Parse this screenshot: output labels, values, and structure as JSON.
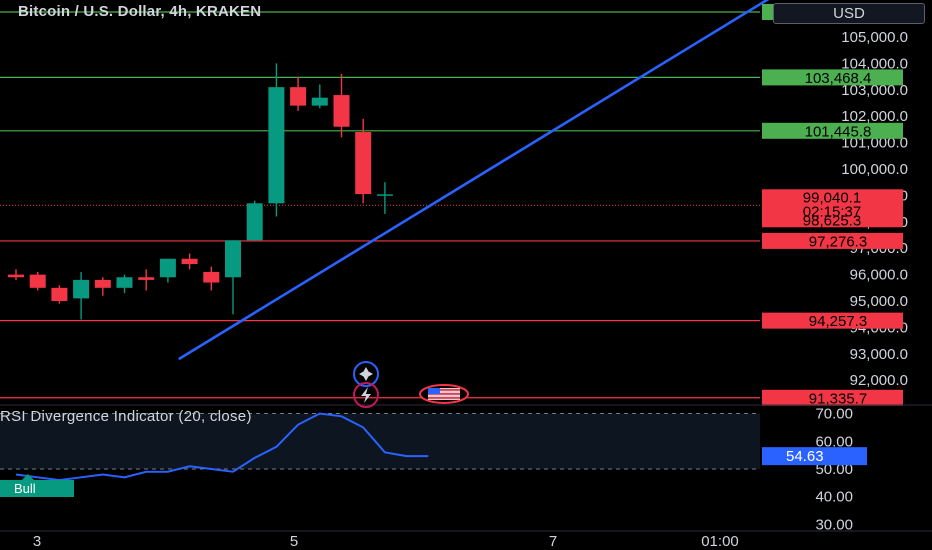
{
  "header": {
    "symbol_title": "Bitcoin / U.S. Dollar, 4h, KRAKEN",
    "currency_button": "USD"
  },
  "rsi_panel": {
    "title": "RSI Divergence Indicator (20, close)",
    "bull_label": "Bull"
  },
  "colors": {
    "background": "#000000",
    "bull_candle": "#089981",
    "bear_candle": "#f23645",
    "trendline": "#2962ff",
    "green_level": "#4caf50",
    "red_level": "#f23645",
    "rsi_line": "#2962ff"
  },
  "chart_data": [
    {
      "type": "candlestick",
      "title": "Bitcoin / U.S. Dollar, 4h, KRAKEN",
      "ylim": [
        91100,
        106400
      ],
      "y_ticks": [
        "92,000.0",
        "93,000.0",
        "94,000.0",
        "95,000.0",
        "96,000.0",
        "97,000.0",
        "98,000.0",
        "99,000.0",
        "100,000.0",
        "101,000.0",
        "102,000.0",
        "103,000.0",
        "104,000.0",
        "105,000.0"
      ],
      "x_ticks": [
        "3",
        "5",
        "7",
        "01:00"
      ],
      "candles": [
        {
          "o": 96000,
          "h": 96200,
          "l": 95800,
          "c": 95900
        },
        {
          "o": 96000,
          "h": 96100,
          "l": 95400,
          "c": 95500
        },
        {
          "o": 95500,
          "h": 95600,
          "l": 94900,
          "c": 95000
        },
        {
          "o": 95100,
          "h": 96100,
          "l": 94300,
          "c": 95800
        },
        {
          "o": 95800,
          "h": 95900,
          "l": 95200,
          "c": 95500
        },
        {
          "o": 95500,
          "h": 96000,
          "l": 95300,
          "c": 95900
        },
        {
          "o": 95900,
          "h": 96200,
          "l": 95400,
          "c": 95800
        },
        {
          "o": 95900,
          "h": 96600,
          "l": 95700,
          "c": 96600
        },
        {
          "o": 96600,
          "h": 96800,
          "l": 96200,
          "c": 96400
        },
        {
          "o": 96100,
          "h": 96300,
          "l": 95400,
          "c": 95700
        },
        {
          "o": 95900,
          "h": 97300,
          "l": 94500,
          "c": 97300
        },
        {
          "o": 97300,
          "h": 98800,
          "l": 97300,
          "c": 98700
        },
        {
          "o": 98700,
          "h": 104000,
          "l": 98200,
          "c": 103100
        },
        {
          "o": 103100,
          "h": 103500,
          "l": 102200,
          "c": 102400
        },
        {
          "o": 102400,
          "h": 103200,
          "l": 102300,
          "c": 102700
        },
        {
          "o": 102800,
          "h": 103600,
          "l": 101200,
          "c": 101600
        },
        {
          "o": 101400,
          "h": 101900,
          "l": 98700,
          "c": 99050
        },
        {
          "o": 99040,
          "h": 99500,
          "l": 98300,
          "c": 99040
        }
      ],
      "trendline": {
        "x1": 7.5,
        "y1": 92800,
        "x2": 35,
        "y2": 106600
      },
      "levels": [
        {
          "value": 105945.6,
          "label": "105,945.6",
          "kind": "green"
        },
        {
          "value": 103468.4,
          "label": "103,468.4",
          "kind": "green"
        },
        {
          "value": 101445.8,
          "label": "101,445.8",
          "kind": "green"
        },
        {
          "value": 97276.3,
          "label": "97,276.3",
          "kind": "red"
        },
        {
          "value": 94257.3,
          "label": "94,257.3",
          "kind": "red"
        },
        {
          "value": 91335.7,
          "label": "91,335.7",
          "kind": "red"
        }
      ],
      "current_price": {
        "value": 98625.3,
        "label": "98,625.3",
        "prev_label": "99,040.1",
        "countdown": "02:15:37"
      }
    },
    {
      "type": "line",
      "title": "RSI Divergence Indicator (20, close)",
      "ylim": [
        28,
        72
      ],
      "y_ticks": [
        "30.00",
        "40.00",
        "50.00",
        "60.00",
        "70.00"
      ],
      "band": [
        50,
        70
      ],
      "series": [
        {
          "values": [
            48,
            47,
            46,
            47,
            48,
            47,
            49,
            49,
            51,
            50,
            49,
            54,
            58,
            66,
            70,
            69,
            65,
            56,
            54.63,
            54.63
          ]
        }
      ],
      "last_value": 54.63,
      "last_label": "54.63"
    }
  ]
}
